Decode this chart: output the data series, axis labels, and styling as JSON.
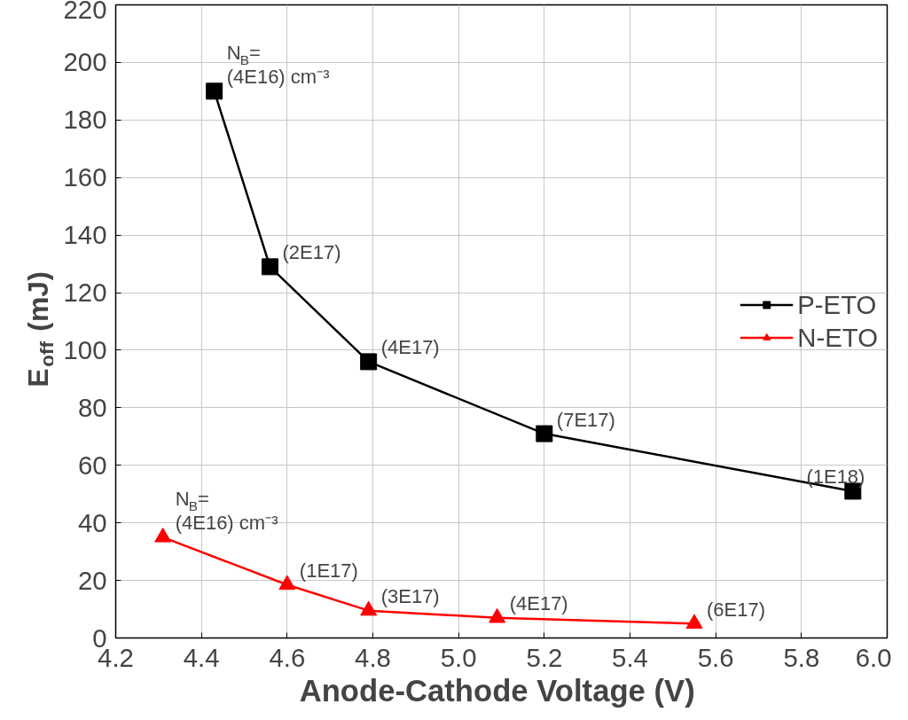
{
  "chart_data": {
    "type": "line",
    "xlabel": "Anode-Cathode Voltage  (V)",
    "ylabel": "E$_{off}$ (mJ)",
    "xlim": [
      4.2,
      6.0
    ],
    "xticks": [
      {
        "value": 4.2,
        "label": "4.2"
      },
      {
        "value": 4.4,
        "label": "4.4"
      },
      {
        "value": 4.6,
        "label": "4.6"
      },
      {
        "value": 4.8,
        "label": "4.8"
      },
      {
        "value": 5.0,
        "label": "5.0"
      },
      {
        "value": 5.2,
        "label": "5.2"
      },
      {
        "value": 5.4,
        "label": "5.4"
      },
      {
        "value": 5.6,
        "label": "5.6"
      },
      {
        "value": 5.8,
        "label": "5.8"
      },
      {
        "value": 6.0,
        "label": "6.0"
      }
    ],
    "ylim": [
      0,
      220
    ],
    "yticks": [
      0,
      20,
      40,
      60,
      80,
      100,
      120,
      140,
      160,
      180,
      200,
      220
    ],
    "grid": true,
    "legend": "right",
    "series": [
      {
        "name": "P-ETO",
        "color": "#000000",
        "marker": "square",
        "x": [
          4.43,
          4.56,
          4.79,
          5.2,
          5.92
        ],
        "values": [
          190,
          129,
          96,
          71,
          51
        ]
      },
      {
        "name": "N-ETO",
        "color": "#ff0000",
        "marker": "triangle",
        "x": [
          4.31,
          4.6,
          4.79,
          5.09,
          5.55
        ],
        "values": [
          35,
          18.5,
          9.5,
          7,
          5
        ]
      }
    ],
    "annotations": [
      {
        "text": "N$_{B}$=\n(4E16) cm⁻³",
        "x": 4.43,
        "y": 190
      },
      {
        "text": "(2E17)",
        "x": 4.56,
        "y": 129
      },
      {
        "text": "(4E17)",
        "x": 4.79,
        "y": 96
      },
      {
        "text": "(7E17)",
        "x": 5.2,
        "y": 71
      },
      {
        "text": "(1E18)",
        "x": 5.92,
        "y": 51
      },
      {
        "text": "N$_{B}$=\n(4E16) cm⁻³",
        "x": 4.31,
        "y": 35
      },
      {
        "text": "(1E17)",
        "x": 4.6,
        "y": 18.5
      },
      {
        "text": "(3E17)",
        "x": 4.79,
        "y": 9.5
      },
      {
        "text": "(4E17)",
        "x": 5.09,
        "y": 7
      },
      {
        "text": "(6E17)",
        "x": 5.55,
        "y": 5
      }
    ]
  }
}
